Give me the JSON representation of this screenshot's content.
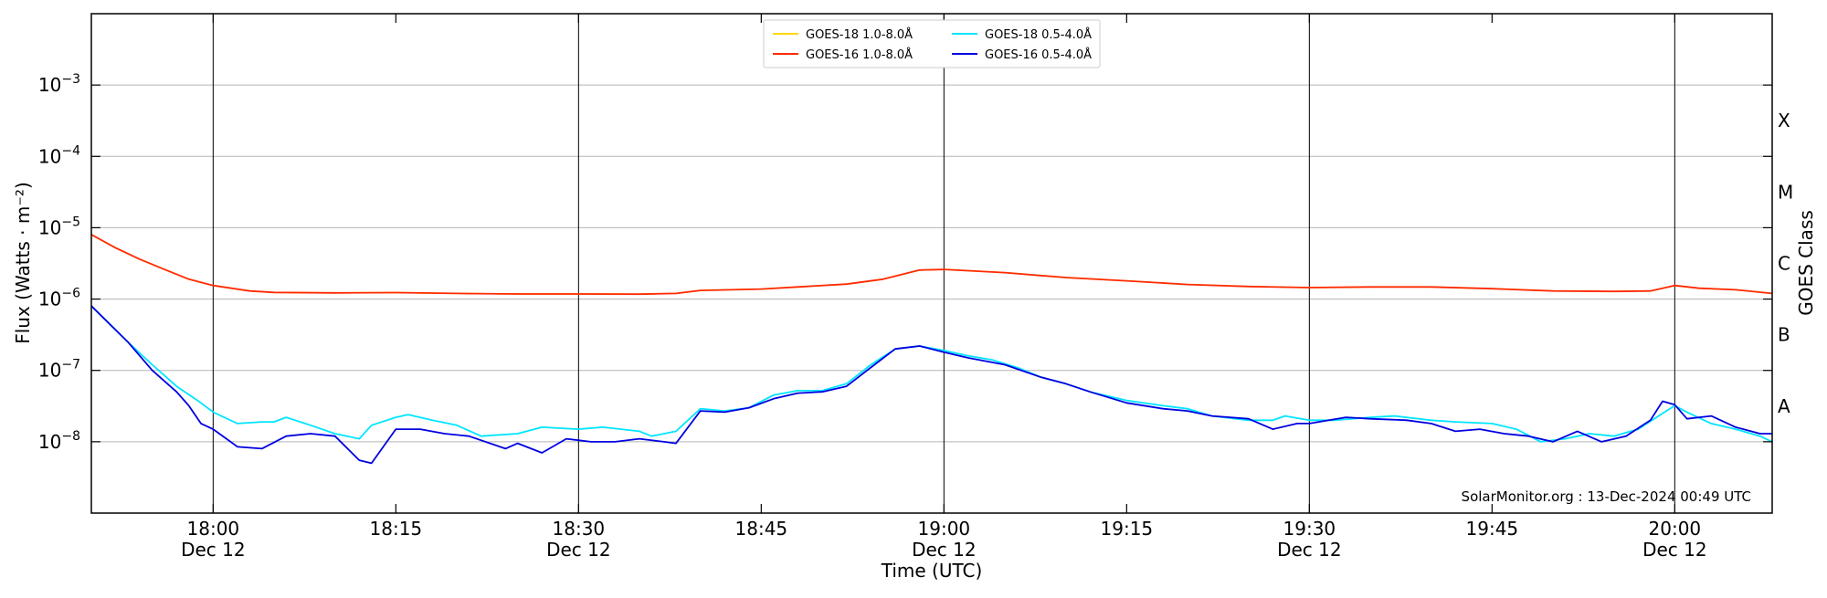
{
  "chart_data": {
    "type": "line",
    "title": "",
    "xlabel": "Time (UTC)",
    "ylabel": "Flux (Watts · m⁻²)",
    "ylabel_right": "GOES Class",
    "y_scale": "log",
    "ylim": [
      1e-09,
      0.01
    ],
    "x_range": [
      "2024-12-12T17:50",
      "2024-12-12T20:08"
    ],
    "grid": "horizontal at decades, vertical at half-hours",
    "legend_position": "top-center",
    "credit": "SolarMonitor.org : 13-Dec-2024 00:49 UTC",
    "y_ticks": [
      {
        "value": 1e-08,
        "base": "10",
        "exp": "−8"
      },
      {
        "value": 1e-07,
        "base": "10",
        "exp": "−7"
      },
      {
        "value": 1e-06,
        "base": "10",
        "exp": "−6"
      },
      {
        "value": 1e-05,
        "base": "10",
        "exp": "−5"
      },
      {
        "value": 0.0001,
        "base": "10",
        "exp": "−4"
      },
      {
        "value": 0.001,
        "base": "10",
        "exp": "−3"
      }
    ],
    "x_ticks": [
      {
        "time": "2024-12-12T18:00",
        "label": "18:00",
        "date": "Dec 12"
      },
      {
        "time": "2024-12-12T18:15",
        "label": "18:15",
        "date": ""
      },
      {
        "time": "2024-12-12T18:30",
        "label": "18:30",
        "date": "Dec 12"
      },
      {
        "time": "2024-12-12T18:45",
        "label": "18:45",
        "date": ""
      },
      {
        "time": "2024-12-12T19:00",
        "label": "19:00",
        "date": "Dec 12"
      },
      {
        "time": "2024-12-12T19:15",
        "label": "19:15",
        "date": ""
      },
      {
        "time": "2024-12-12T19:30",
        "label": "19:30",
        "date": "Dec 12"
      },
      {
        "time": "2024-12-12T19:45",
        "label": "19:45",
        "date": ""
      },
      {
        "time": "2024-12-12T20:00",
        "label": "20:00",
        "date": "Dec 12"
      }
    ],
    "goes_classes": [
      {
        "label": "A",
        "value": 3.16e-08
      },
      {
        "label": "B",
        "value": 3.16e-07
      },
      {
        "label": "C",
        "value": 3.16e-06
      },
      {
        "label": "M",
        "value": 3.16e-05
      },
      {
        "label": "X",
        "value": 0.000316
      }
    ],
    "series": [
      {
        "name": "GOES-18 1.0-8.0Å",
        "color": "#ffd700",
        "points": [
          [
            "17:50",
            8e-06
          ],
          [
            "17:52",
            5.2e-06
          ],
          [
            "17:54",
            3.6e-06
          ],
          [
            "17:56",
            2.6e-06
          ],
          [
            "17:58",
            1.9e-06
          ],
          [
            "18:00",
            1.55e-06
          ],
          [
            "18:03",
            1.3e-06
          ],
          [
            "18:05",
            1.24e-06
          ],
          [
            "18:10",
            1.22e-06
          ],
          [
            "18:15",
            1.23e-06
          ],
          [
            "18:20",
            1.2e-06
          ],
          [
            "18:25",
            1.18e-06
          ],
          [
            "18:30",
            1.18e-06
          ],
          [
            "18:35",
            1.17e-06
          ],
          [
            "18:38",
            1.2e-06
          ],
          [
            "18:40",
            1.32e-06
          ],
          [
            "18:45",
            1.38e-06
          ],
          [
            "18:48",
            1.48e-06
          ],
          [
            "18:52",
            1.62e-06
          ],
          [
            "18:55",
            1.9e-06
          ],
          [
            "18:58",
            2.55e-06
          ],
          [
            "19:00",
            2.6e-06
          ],
          [
            "19:05",
            2.35e-06
          ],
          [
            "19:10",
            2e-06
          ],
          [
            "19:15",
            1.8e-06
          ],
          [
            "19:20",
            1.6e-06
          ],
          [
            "19:25",
            1.5e-06
          ],
          [
            "19:30",
            1.45e-06
          ],
          [
            "19:35",
            1.48e-06
          ],
          [
            "19:40",
            1.48e-06
          ],
          [
            "19:45",
            1.4e-06
          ],
          [
            "19:50",
            1.3e-06
          ],
          [
            "19:55",
            1.28e-06
          ],
          [
            "19:58",
            1.3e-06
          ],
          [
            "20:00",
            1.55e-06
          ],
          [
            "20:02",
            1.42e-06
          ],
          [
            "20:05",
            1.35e-06
          ],
          [
            "20:08",
            1.2e-06
          ]
        ]
      },
      {
        "name": "GOES-16 1.0-8.0Å",
        "color": "#ff2a00",
        "points": [
          [
            "17:50",
            8e-06
          ],
          [
            "17:52",
            5.2e-06
          ],
          [
            "17:54",
            3.6e-06
          ],
          [
            "17:56",
            2.6e-06
          ],
          [
            "17:58",
            1.9e-06
          ],
          [
            "18:00",
            1.55e-06
          ],
          [
            "18:03",
            1.3e-06
          ],
          [
            "18:05",
            1.24e-06
          ],
          [
            "18:10",
            1.22e-06
          ],
          [
            "18:15",
            1.23e-06
          ],
          [
            "18:20",
            1.2e-06
          ],
          [
            "18:25",
            1.18e-06
          ],
          [
            "18:30",
            1.18e-06
          ],
          [
            "18:35",
            1.17e-06
          ],
          [
            "18:38",
            1.2e-06
          ],
          [
            "18:40",
            1.32e-06
          ],
          [
            "18:45",
            1.38e-06
          ],
          [
            "18:48",
            1.48e-06
          ],
          [
            "18:52",
            1.62e-06
          ],
          [
            "18:55",
            1.9e-06
          ],
          [
            "18:58",
            2.55e-06
          ],
          [
            "19:00",
            2.6e-06
          ],
          [
            "19:05",
            2.35e-06
          ],
          [
            "19:10",
            2e-06
          ],
          [
            "19:15",
            1.8e-06
          ],
          [
            "19:20",
            1.6e-06
          ],
          [
            "19:25",
            1.5e-06
          ],
          [
            "19:30",
            1.45e-06
          ],
          [
            "19:35",
            1.48e-06
          ],
          [
            "19:40",
            1.48e-06
          ],
          [
            "19:45",
            1.4e-06
          ],
          [
            "19:50",
            1.3e-06
          ],
          [
            "19:55",
            1.28e-06
          ],
          [
            "19:58",
            1.3e-06
          ],
          [
            "20:00",
            1.55e-06
          ],
          [
            "20:02",
            1.42e-06
          ],
          [
            "20:05",
            1.35e-06
          ],
          [
            "20:08",
            1.2e-06
          ]
        ]
      },
      {
        "name": "GOES-18 0.5-4.0Å",
        "color": "#00e5ff",
        "points": [
          [
            "17:50",
            8e-07
          ],
          [
            "17:53",
            2.5e-07
          ],
          [
            "17:55",
            1.2e-07
          ],
          [
            "17:57",
            6e-08
          ],
          [
            "17:59",
            3.5e-08
          ],
          [
            "18:00",
            2.6e-08
          ],
          [
            "18:02",
            1.8e-08
          ],
          [
            "18:04",
            1.9e-08
          ],
          [
            "18:05",
            1.9e-08
          ],
          [
            "18:06",
            2.2e-08
          ],
          [
            "18:08",
            1.7e-08
          ],
          [
            "18:10",
            1.3e-08
          ],
          [
            "18:12",
            1.1e-08
          ],
          [
            "18:13",
            1.7e-08
          ],
          [
            "18:15",
            2.2e-08
          ],
          [
            "18:16",
            2.4e-08
          ],
          [
            "18:18",
            2e-08
          ],
          [
            "18:20",
            1.7e-08
          ],
          [
            "18:22",
            1.2e-08
          ],
          [
            "18:25",
            1.3e-08
          ],
          [
            "18:27",
            1.6e-08
          ],
          [
            "18:30",
            1.5e-08
          ],
          [
            "18:32",
            1.6e-08
          ],
          [
            "18:35",
            1.4e-08
          ],
          [
            "18:36",
            1.2e-08
          ],
          [
            "18:38",
            1.4e-08
          ],
          [
            "18:40",
            2.9e-08
          ],
          [
            "18:42",
            2.7e-08
          ],
          [
            "18:44",
            3e-08
          ],
          [
            "18:46",
            4.5e-08
          ],
          [
            "18:48",
            5.2e-08
          ],
          [
            "18:50",
            5.2e-08
          ],
          [
            "18:52",
            6.5e-08
          ],
          [
            "18:54",
            1.2e-07
          ],
          [
            "18:56",
            2e-07
          ],
          [
            "18:58",
            2.2e-07
          ],
          [
            "19:00",
            1.9e-07
          ],
          [
            "19:02",
            1.6e-07
          ],
          [
            "19:04",
            1.4e-07
          ],
          [
            "19:06",
            1.1e-07
          ],
          [
            "19:08",
            8e-08
          ],
          [
            "19:10",
            6.5e-08
          ],
          [
            "19:12",
            5e-08
          ],
          [
            "19:15",
            3.8e-08
          ],
          [
            "19:18",
            3.2e-08
          ],
          [
            "19:20",
            2.9e-08
          ],
          [
            "19:22",
            2.3e-08
          ],
          [
            "19:25",
            2e-08
          ],
          [
            "19:27",
            2e-08
          ],
          [
            "19:28",
            2.3e-08
          ],
          [
            "19:30",
            2e-08
          ],
          [
            "19:32",
            2e-08
          ],
          [
            "19:35",
            2.2e-08
          ],
          [
            "19:37",
            2.3e-08
          ],
          [
            "19:40",
            2e-08
          ],
          [
            "19:42",
            1.9e-08
          ],
          [
            "19:45",
            1.8e-08
          ],
          [
            "19:47",
            1.5e-08
          ],
          [
            "19:49",
            1e-08
          ],
          [
            "19:51",
            1.1e-08
          ],
          [
            "19:53",
            1.3e-08
          ],
          [
            "19:55",
            1.2e-08
          ],
          [
            "19:57",
            1.5e-08
          ],
          [
            "19:59",
            2.5e-08
          ],
          [
            "20:00",
            3.2e-08
          ],
          [
            "20:01",
            2.6e-08
          ],
          [
            "20:03",
            1.8e-08
          ],
          [
            "20:05",
            1.5e-08
          ],
          [
            "20:07",
            1.2e-08
          ],
          [
            "20:08",
            1e-08
          ]
        ]
      },
      {
        "name": "GOES-16 0.5-4.0Å",
        "color": "#0000e0",
        "points": [
          [
            "17:50",
            8e-07
          ],
          [
            "17:53",
            2.5e-07
          ],
          [
            "17:55",
            1e-07
          ],
          [
            "17:57",
            5e-08
          ],
          [
            "17:58",
            3.2e-08
          ],
          [
            "17:59",
            1.8e-08
          ],
          [
            "18:00",
            1.5e-08
          ],
          [
            "18:02",
            8.5e-09
          ],
          [
            "18:04",
            8e-09
          ],
          [
            "18:06",
            1.2e-08
          ],
          [
            "18:08",
            1.3e-08
          ],
          [
            "18:10",
            1.2e-08
          ],
          [
            "18:12",
            5.5e-09
          ],
          [
            "18:13",
            5e-09
          ],
          [
            "18:15",
            1.5e-08
          ],
          [
            "18:17",
            1.5e-08
          ],
          [
            "18:19",
            1.3e-08
          ],
          [
            "18:21",
            1.2e-08
          ],
          [
            "18:24",
            8e-09
          ],
          [
            "18:25",
            9.5e-09
          ],
          [
            "18:27",
            7e-09
          ],
          [
            "18:29",
            1.1e-08
          ],
          [
            "18:31",
            1e-08
          ],
          [
            "18:33",
            1e-08
          ],
          [
            "18:35",
            1.1e-08
          ],
          [
            "18:37",
            1e-08
          ],
          [
            "18:38",
            9.5e-09
          ],
          [
            "18:40",
            2.7e-08
          ],
          [
            "18:42",
            2.6e-08
          ],
          [
            "18:44",
            3e-08
          ],
          [
            "18:46",
            4e-08
          ],
          [
            "18:48",
            4.8e-08
          ],
          [
            "18:50",
            5e-08
          ],
          [
            "18:52",
            6e-08
          ],
          [
            "18:54",
            1.1e-07
          ],
          [
            "18:56",
            2e-07
          ],
          [
            "18:58",
            2.2e-07
          ],
          [
            "19:00",
            1.8e-07
          ],
          [
            "19:02",
            1.5e-07
          ],
          [
            "19:05",
            1.2e-07
          ],
          [
            "19:08",
            8e-08
          ],
          [
            "19:10",
            6.5e-08
          ],
          [
            "19:12",
            5e-08
          ],
          [
            "19:15",
            3.5e-08
          ],
          [
            "19:18",
            2.9e-08
          ],
          [
            "19:20",
            2.7e-08
          ],
          [
            "19:22",
            2.3e-08
          ],
          [
            "19:25",
            2.1e-08
          ],
          [
            "19:27",
            1.5e-08
          ],
          [
            "19:29",
            1.8e-08
          ],
          [
            "19:30",
            1.8e-08
          ],
          [
            "19:33",
            2.2e-08
          ],
          [
            "19:35",
            2.1e-08
          ],
          [
            "19:38",
            2e-08
          ],
          [
            "19:40",
            1.8e-08
          ],
          [
            "19:42",
            1.4e-08
          ],
          [
            "19:44",
            1.5e-08
          ],
          [
            "19:46",
            1.3e-08
          ],
          [
            "19:48",
            1.2e-08
          ],
          [
            "19:50",
            1e-08
          ],
          [
            "19:52",
            1.4e-08
          ],
          [
            "19:54",
            1e-08
          ],
          [
            "19:56",
            1.2e-08
          ],
          [
            "19:58",
            2e-08
          ],
          [
            "19:59",
            3.7e-08
          ],
          [
            "20:00",
            3.3e-08
          ],
          [
            "20:01",
            2.1e-08
          ],
          [
            "20:03",
            2.3e-08
          ],
          [
            "20:05",
            1.6e-08
          ],
          [
            "20:07",
            1.3e-08
          ],
          [
            "20:08",
            1.3e-08
          ]
        ]
      }
    ]
  }
}
